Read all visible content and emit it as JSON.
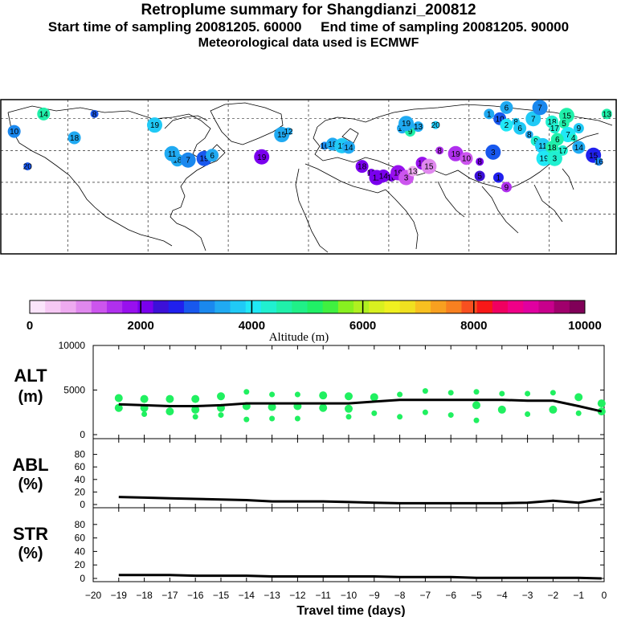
{
  "header": {
    "title": "Retroplume summary for Shangdianzi_200812",
    "sampling_line": "Start time of sampling 20081205. 60000     End time of sampling 20081205. 90000",
    "met_line": "Meteorological data used is ECMWF"
  },
  "colorbar": {
    "colors": [
      "#fbe4fb",
      "#f6c8f4",
      "#eeaaf0",
      "#e088ee",
      "#cc55ee",
      "#b030ee",
      "#9810ee",
      "#7a00ee",
      "#3c10d8",
      "#2020ee",
      "#1858ee",
      "#1a88ee",
      "#20aaf2",
      "#20caf6",
      "#20e8f6",
      "#20f0d0",
      "#20f0aa",
      "#20f088",
      "#20f066",
      "#40f040",
      "#88f020",
      "#b0f020",
      "#d8f020",
      "#f0f020",
      "#f0e020",
      "#f8c020",
      "#f8a020",
      "#f88020",
      "#f85020",
      "#f81818",
      "#f00060",
      "#f00088",
      "#e000a0",
      "#c8008c",
      "#a0006c",
      "#800058"
    ],
    "tick_labels": [
      "0",
      "2000",
      "4000",
      "6000",
      "8000",
      "10000"
    ],
    "label": "Altitude  (m)"
  },
  "map": {
    "markers": [
      {
        "lon": -168,
        "lat": 83,
        "alt": 4600,
        "label": "14"
      },
      {
        "lon": -130,
        "lat": 83,
        "alt": 2800,
        "label": "8"
      },
      {
        "lon": -190,
        "lat": 72,
        "alt": 3200,
        "label": "10"
      },
      {
        "lon": -180,
        "lat": 50,
        "alt": 3000,
        "label": "20"
      },
      {
        "lon": -145,
        "lat": 68,
        "alt": 3500,
        "label": "18"
      },
      {
        "lon": -85,
        "lat": 76,
        "alt": 3800,
        "label": "19"
      },
      {
        "lon": -48,
        "lat": 55,
        "alt": 3000,
        "label": "19"
      },
      {
        "lon": -42,
        "lat": 57,
        "alt": 3500,
        "label": "6"
      },
      {
        "lon": -5,
        "lat": 56,
        "alt": 2200,
        "label": "19"
      },
      {
        "lon": -68,
        "lat": 54,
        "alt": 3600,
        "label": "18"
      },
      {
        "lon": -72,
        "lat": 58,
        "alt": 3500,
        "label": "11"
      },
      {
        "lon": -60,
        "lat": 54,
        "alt": 3200,
        "label": "7"
      },
      {
        "lon": 10,
        "lat": 70,
        "alt": 3500,
        "label": "15"
      },
      {
        "lon": 15,
        "lat": 72,
        "alt": 3600,
        "label": "12"
      },
      {
        "lon": 42,
        "lat": 63,
        "alt": 3200,
        "label": "16"
      },
      {
        "lon": 48,
        "lat": 64,
        "alt": 3500,
        "label": "18"
      },
      {
        "lon": 55,
        "lat": 63,
        "alt": 3700,
        "label": "11"
      },
      {
        "lon": 60,
        "lat": 62,
        "alt": 3400,
        "label": "14"
      },
      {
        "lon": 100,
        "lat": 74,
        "alt": 3600,
        "label": "17"
      },
      {
        "lon": 106,
        "lat": 72,
        "alt": 4600,
        "label": "9"
      },
      {
        "lon": 103,
        "lat": 77,
        "alt": 3600,
        "label": "19"
      },
      {
        "lon": 112,
        "lat": 75,
        "alt": 3500,
        "label": "13"
      },
      {
        "lon": 125,
        "lat": 76,
        "alt": 3800,
        "label": "20"
      },
      {
        "lon": 70,
        "lat": 50,
        "alt": 2000,
        "label": "18"
      },
      {
        "lon": 77,
        "lat": 46,
        "alt": 2200,
        "label": "16"
      },
      {
        "lon": 81,
        "lat": 43,
        "alt": 2000,
        "label": "11"
      },
      {
        "lon": 86,
        "lat": 44,
        "alt": 2100,
        "label": "14"
      },
      {
        "lon": 92,
        "lat": 43,
        "alt": 2100,
        "label": "16"
      },
      {
        "lon": 97,
        "lat": 46,
        "alt": 1900,
        "label": "19"
      },
      {
        "lon": 103,
        "lat": 43,
        "alt": 1200,
        "label": "3"
      },
      {
        "lon": 108,
        "lat": 47,
        "alt": 800,
        "label": "13"
      },
      {
        "lon": 115,
        "lat": 52,
        "alt": 1800,
        "label": "10"
      },
      {
        "lon": 120,
        "lat": 50,
        "alt": 1100,
        "label": "15"
      },
      {
        "lon": 128,
        "lat": 60,
        "alt": 1500,
        "label": "8"
      },
      {
        "lon": 140,
        "lat": 58,
        "alt": 1600,
        "label": "19"
      },
      {
        "lon": 148,
        "lat": 55,
        "alt": 1300,
        "label": "10"
      },
      {
        "lon": 158,
        "lat": 53,
        "alt": 2100,
        "label": "8"
      },
      {
        "lon": 168,
        "lat": 59,
        "alt": 2800,
        "label": "3"
      },
      {
        "lon": 158,
        "lat": 44,
        "alt": 2400,
        "label": "5"
      },
      {
        "lon": 172,
        "lat": 43,
        "alt": 2500,
        "label": "1"
      },
      {
        "lon": 178,
        "lat": 37,
        "alt": 1400,
        "label": "9"
      },
      {
        "lon": 165,
        "lat": 83,
        "alt": 3500,
        "label": "1"
      },
      {
        "lon": 178,
        "lat": 87,
        "alt": 3600,
        "label": "6"
      },
      {
        "lon": 173,
        "lat": 80,
        "alt": 3000,
        "label": "10"
      },
      {
        "lon": 185,
        "lat": 78,
        "alt": 3800,
        "label": "8"
      },
      {
        "lon": 198,
        "lat": 80,
        "alt": 3700,
        "label": "7"
      },
      {
        "lon": 178,
        "lat": 76,
        "alt": 3900,
        "label": "2"
      },
      {
        "lon": 188,
        "lat": 74,
        "alt": 3800,
        "label": "6"
      },
      {
        "lon": 195,
        "lat": 70,
        "alt": 3600,
        "label": "8"
      },
      {
        "lon": 212,
        "lat": 78,
        "alt": 4400,
        "label": "18"
      },
      {
        "lon": 214,
        "lat": 74,
        "alt": 4200,
        "label": "17"
      },
      {
        "lon": 223,
        "lat": 82,
        "alt": 4500,
        "label": "15"
      },
      {
        "lon": 221,
        "lat": 77,
        "alt": 4600,
        "label": "5"
      },
      {
        "lon": 232,
        "lat": 74,
        "alt": 3800,
        "label": "9"
      },
      {
        "lon": 224,
        "lat": 70,
        "alt": 4100,
        "label": "7"
      },
      {
        "lon": 216,
        "lat": 67,
        "alt": 4700,
        "label": "6"
      },
      {
        "lon": 228,
        "lat": 68,
        "alt": 4400,
        "label": "4"
      },
      {
        "lon": 200,
        "lat": 66,
        "alt": 4200,
        "label": "9"
      },
      {
        "lon": 205,
        "lat": 63,
        "alt": 3800,
        "label": "11"
      },
      {
        "lon": 212,
        "lat": 62,
        "alt": 4600,
        "label": "18"
      },
      {
        "lon": 220,
        "lat": 60,
        "alt": 4400,
        "label": "17"
      },
      {
        "lon": 232,
        "lat": 62,
        "alt": 3600,
        "label": "14"
      },
      {
        "lon": 206,
        "lat": 55,
        "alt": 4000,
        "label": "19"
      },
      {
        "lon": 214,
        "lat": 55,
        "alt": 4300,
        "label": "3"
      },
      {
        "lon": 243,
        "lat": 57,
        "alt": 2600,
        "label": "15"
      },
      {
        "lon": 247,
        "lat": 53,
        "alt": 3200,
        "label": "16"
      },
      {
        "lon": 253,
        "lat": 83,
        "alt": 4700,
        "label": "13"
      },
      {
        "lon": 203,
        "lat": 87,
        "alt": 3300,
        "label": "7"
      }
    ]
  },
  "panels": [
    {
      "key": "alt",
      "title_top": "ALT",
      "title_bottom": "(m)",
      "ylim": [
        0,
        10000
      ],
      "ticks": [
        "10000",
        "5000",
        "0"
      ],
      "tick_values": [
        10000,
        5000,
        0
      ]
    },
    {
      "key": "abl",
      "title_top": "ABL",
      "title_bottom": "(%)",
      "ylim": [
        0,
        100
      ],
      "ticks": [
        "80",
        "60",
        "40",
        "20",
        "0"
      ],
      "tick_values": [
        80,
        60,
        40,
        20,
        0
      ]
    },
    {
      "key": "str",
      "title_top": "STR",
      "title_bottom": "(%)",
      "ylim": [
        0,
        100
      ],
      "ticks": [
        "80",
        "60",
        "40",
        "20",
        "0"
      ],
      "tick_values": [
        80,
        60,
        40,
        20,
        0
      ]
    }
  ],
  "x_axis": {
    "label": "Travel time (days)",
    "xlim": [
      -20,
      0
    ],
    "tick_values": [
      -20,
      -19,
      -18,
      -17,
      -16,
      -15,
      -14,
      -13,
      -12,
      -11,
      -10,
      -9,
      -8,
      -7,
      -6,
      -5,
      -4,
      -3,
      -2,
      -1,
      0
    ],
    "tick_labels": [
      "−20",
      "−19",
      "−18",
      "−17",
      "−16",
      "−15",
      "−14",
      "−13",
      "−12",
      "−11",
      "−10",
      "−9",
      "−8",
      "−7",
      "−6",
      "−5",
      "−4",
      "−3",
      "−2",
      "−1",
      "0"
    ]
  },
  "chart_data": [
    {
      "type": "line",
      "title": "ALT (m)",
      "xlabel": "Travel time (days)",
      "ylabel": "ALT (m)",
      "xlim": [
        -20,
        0
      ],
      "ylim": [
        0,
        10000
      ],
      "series": [
        {
          "name": "mean altitude",
          "x": [
            -19,
            -18,
            -17,
            -16,
            -15,
            -14,
            -13,
            -12,
            -11,
            -10,
            -9,
            -8,
            -7,
            -6,
            -5,
            -4,
            -3,
            -2,
            -1,
            -0.1
          ],
          "values": [
            3400,
            3300,
            3200,
            3200,
            3300,
            3500,
            3500,
            3500,
            3500,
            3500,
            3700,
            3900,
            3900,
            3900,
            3900,
            3900,
            3800,
            3800,
            3200,
            2600
          ]
        },
        {
          "name": "cluster altitudes",
          "type": "scatter",
          "x": [
            -19,
            -19,
            -18,
            -18,
            -18,
            -17,
            -17,
            -16,
            -16,
            -16,
            -15,
            -15,
            -15,
            -14,
            -14,
            -14,
            -13,
            -13,
            -13,
            -12,
            -12,
            -12,
            -11,
            -11,
            -10,
            -10,
            -10,
            -9,
            -9,
            -8,
            -8,
            -7,
            -7,
            -6,
            -6,
            -5,
            -5,
            -5,
            -4,
            -4,
            -3,
            -3,
            -2,
            -2,
            -1,
            -1,
            -0.1,
            -0.1
          ],
          "values": [
            4100,
            3000,
            4000,
            3000,
            2300,
            4000,
            2600,
            4000,
            2800,
            2000,
            4300,
            3000,
            2200,
            4800,
            3200,
            1700,
            4500,
            3100,
            1800,
            4500,
            3200,
            1800,
            4400,
            3000,
            4300,
            2900,
            2000,
            4200,
            2400,
            4500,
            2000,
            4900,
            2500,
            4700,
            2200,
            4800,
            3300,
            1600,
            4600,
            2800,
            4600,
            2300,
            4700,
            2800,
            4200,
            2400,
            3500,
            2600
          ]
        }
      ]
    },
    {
      "type": "line",
      "title": "ABL (%)",
      "xlabel": "Travel time (days)",
      "ylabel": "ABL (%)",
      "xlim": [
        -20,
        0
      ],
      "ylim": [
        0,
        100
      ],
      "series": [
        {
          "name": "ABL fraction",
          "x": [
            -19,
            -18,
            -17,
            -16,
            -15,
            -14,
            -13,
            -12,
            -11,
            -10,
            -9,
            -8,
            -7,
            -6,
            -5,
            -4,
            -3,
            -2,
            -1,
            -0.1
          ],
          "values": [
            12,
            11,
            10,
            9,
            8,
            7,
            5,
            5,
            5,
            4,
            3,
            2,
            2,
            2,
            2,
            2,
            3,
            6,
            3,
            9
          ]
        }
      ]
    },
    {
      "type": "line",
      "title": "STR (%)",
      "xlabel": "Travel time (days)",
      "ylabel": "STR (%)",
      "xlim": [
        -20,
        0
      ],
      "ylim": [
        0,
        100
      ],
      "series": [
        {
          "name": "stratospheric fraction",
          "x": [
            -19,
            -18,
            -17,
            -16,
            -15,
            -14,
            -13,
            -12,
            -11,
            -10,
            -9,
            -8,
            -7,
            -6,
            -5,
            -4,
            -3,
            -2,
            -1,
            -0.1
          ],
          "values": [
            5,
            5,
            5,
            4,
            4,
            4,
            3,
            3,
            3,
            3,
            3,
            2,
            2,
            2,
            1,
            1,
            1,
            1,
            1,
            0
          ]
        }
      ]
    }
  ]
}
